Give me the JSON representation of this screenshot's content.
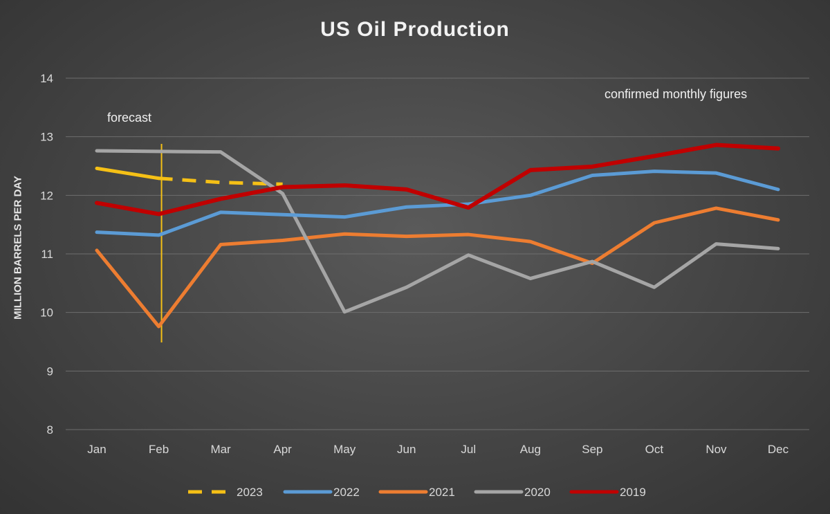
{
  "chart_data": {
    "type": "line",
    "title": "US Oil Production",
    "xlabel": "",
    "ylabel": "MILLION BARRELS PER DAY",
    "categories": [
      "Jan",
      "Feb",
      "Mar",
      "Apr",
      "May",
      "Jun",
      "Jul",
      "Aug",
      "Sep",
      "Oct",
      "Nov",
      "Dec"
    ],
    "ylim": [
      8,
      14
    ],
    "yticks": [
      "8",
      "9",
      "10",
      "11",
      "12",
      "13",
      "14"
    ],
    "grid": true,
    "legend_position": "bottom",
    "annotations": {
      "forecast": "forecast",
      "confirmed": "confirmed monthly figures"
    },
    "series": [
      {
        "name": "2023",
        "color": "#f5c016",
        "values": [
          12.46,
          12.29,
          12.22,
          12.19,
          null,
          null,
          null,
          null,
          null,
          null,
          null,
          null
        ],
        "solid_through_index": 1,
        "dashed_after": true
      },
      {
        "name": "2022",
        "color": "#5b9bd5",
        "values": [
          11.37,
          11.32,
          11.71,
          11.67,
          11.63,
          11.8,
          11.85,
          12.0,
          12.34,
          12.41,
          12.38,
          12.1
        ]
      },
      {
        "name": "2021",
        "color": "#ed7d31",
        "values": [
          11.06,
          9.76,
          11.16,
          11.23,
          11.34,
          11.3,
          11.33,
          11.21,
          10.84,
          11.53,
          11.78,
          11.58
        ]
      },
      {
        "name": "2020",
        "color": "#a5a5a5",
        "values": [
          12.76,
          12.75,
          12.74,
          12.03,
          10.01,
          10.43,
          10.98,
          10.58,
          10.87,
          10.43,
          11.17,
          11.09
        ]
      },
      {
        "name": "2019",
        "color": "#c00000",
        "values": [
          11.87,
          11.68,
          11.94,
          12.14,
          12.17,
          12.1,
          11.79,
          12.43,
          12.49,
          12.67,
          12.86,
          12.8
        ]
      }
    ],
    "forecast_marker": {
      "category": "Feb",
      "color": "#f5c016"
    }
  }
}
